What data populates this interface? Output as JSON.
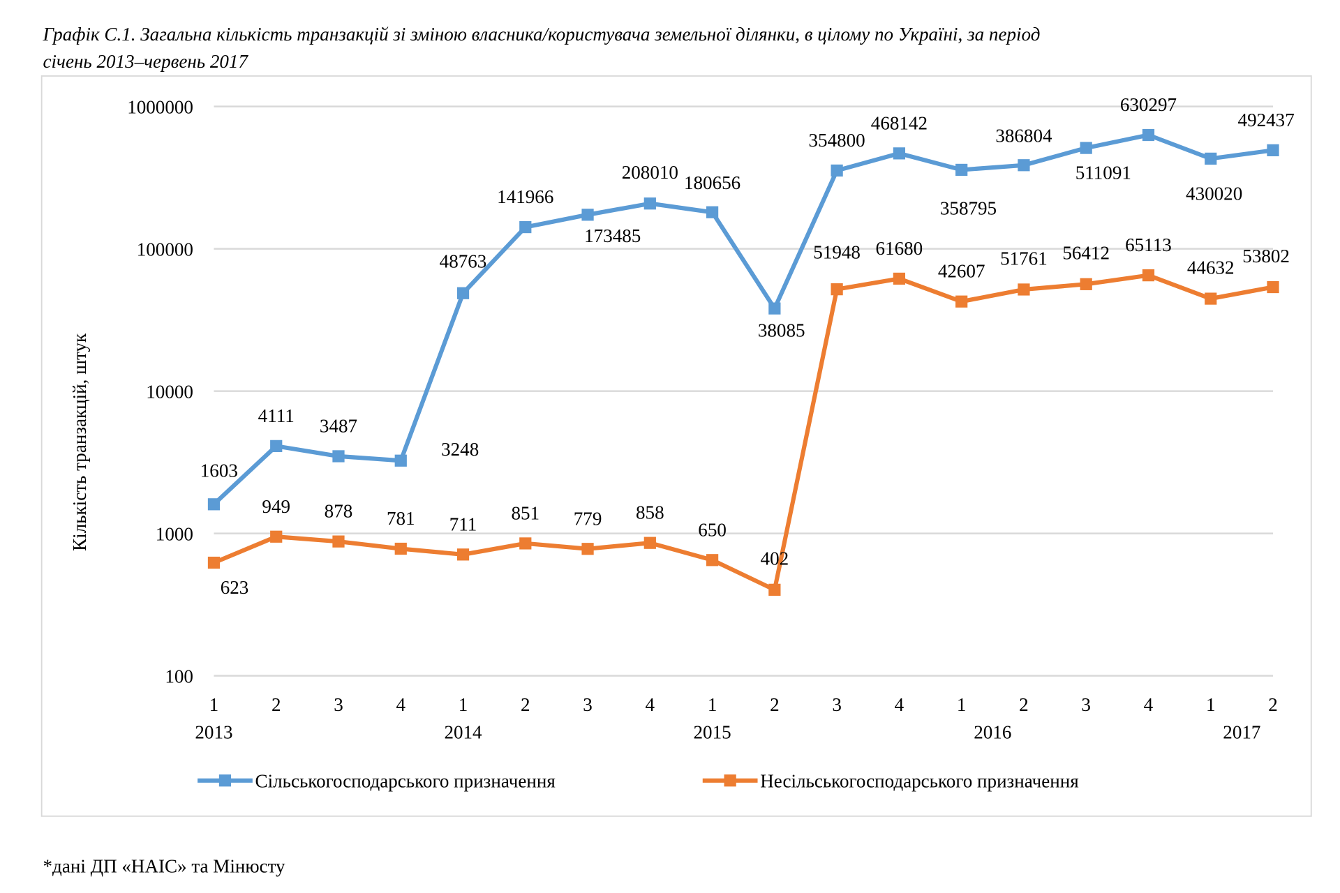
{
  "chart_data": {
    "type": "line",
    "title_line1": "Графік С.1. Загальна кількість транзакцій зі зміною власника/користувача земельної ділянки, в цілому по Україні, за період",
    "title_line2": "січень 2013–червень  2017",
    "ylabel": "Кількість транзакцій, штук",
    "xlabel": "",
    "yscale": "log",
    "ylim": [
      100,
      1000000
    ],
    "yticks": [
      "100",
      "1000",
      "10000",
      "100000",
      "1000000"
    ],
    "ytick_values": [
      100,
      1000,
      10000,
      100000,
      1000000
    ],
    "grid": true,
    "legend_position": "bottom",
    "x_quarters": [
      "1",
      "2",
      "3",
      "4",
      "1",
      "2",
      "3",
      "4",
      "1",
      "2",
      "3",
      "4",
      "1",
      "2",
      "3",
      "4",
      "1",
      "2"
    ],
    "x_years": [
      {
        "label": "2013",
        "at_index": 0
      },
      {
        "label": "2014",
        "at_index": 4
      },
      {
        "label": "2015",
        "at_index": 8
      },
      {
        "label": "2016",
        "at_index": 12.5
      },
      {
        "label": "2017",
        "at_index": 16.5
      }
    ],
    "series": [
      {
        "name": "Сільськогосподарського призначення",
        "color": "#5B9BD5",
        "values": [
          1603,
          4111,
          3487,
          3248,
          48763,
          141966,
          173485,
          208010,
          180656,
          38085,
          354800,
          468142,
          358795,
          386804,
          511091,
          630297,
          430020,
          492437
        ]
      },
      {
        "name": "Несільськогосподарського призначення",
        "color": "#ED7D31",
        "values": [
          623,
          949,
          878,
          781,
          711,
          851,
          779,
          858,
          650,
          402,
          51948,
          61680,
          42607,
          51761,
          56412,
          65113,
          44632,
          53802
        ]
      }
    ]
  },
  "footnote": "*дані ДП «НАІС» та Мінюсту"
}
